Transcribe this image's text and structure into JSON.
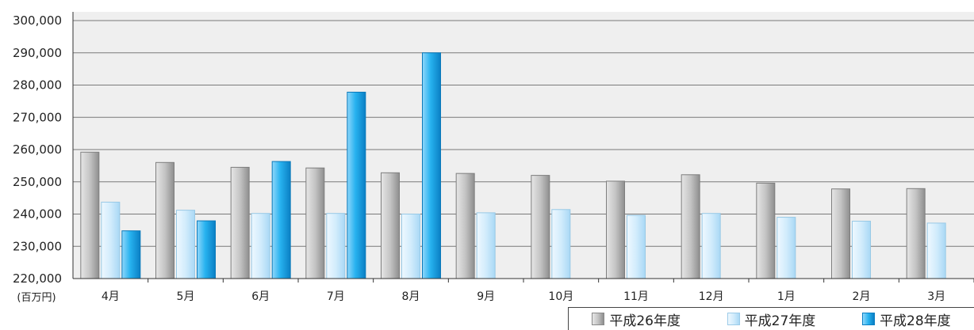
{
  "chart_data": {
    "type": "bar",
    "unit_label": "(百万円)",
    "categories": [
      "4月",
      "5月",
      "6月",
      "7月",
      "8月",
      "9月",
      "10月",
      "11月",
      "12月",
      "1月",
      "2月",
      "3月"
    ],
    "y_ticks": [
      "220,000",
      "230,000",
      "240,000",
      "250,000",
      "260,000",
      "270,000",
      "280,000",
      "290,000",
      "300,000"
    ],
    "ylim": [
      220000,
      300000
    ],
    "grid": true,
    "legend_position": "bottom-right",
    "series": [
      {
        "name": "平成26年度",
        "color": "#b8b8b8",
        "values": [
          259200,
          256000,
          254500,
          254300,
          252800,
          252600,
          252000,
          250200,
          252200,
          249600,
          247800,
          247900
        ]
      },
      {
        "name": "平成27年度",
        "color": "#c9e8fb",
        "values": [
          243700,
          241200,
          240200,
          240200,
          240000,
          240400,
          241400,
          239600,
          240200,
          239000,
          237800,
          237200
        ]
      },
      {
        "name": "平成28年度",
        "color": "#1ea8e6",
        "values": [
          234800,
          237900,
          256300,
          277800,
          290000,
          null,
          null,
          null,
          null,
          null,
          null,
          null
        ]
      }
    ]
  }
}
